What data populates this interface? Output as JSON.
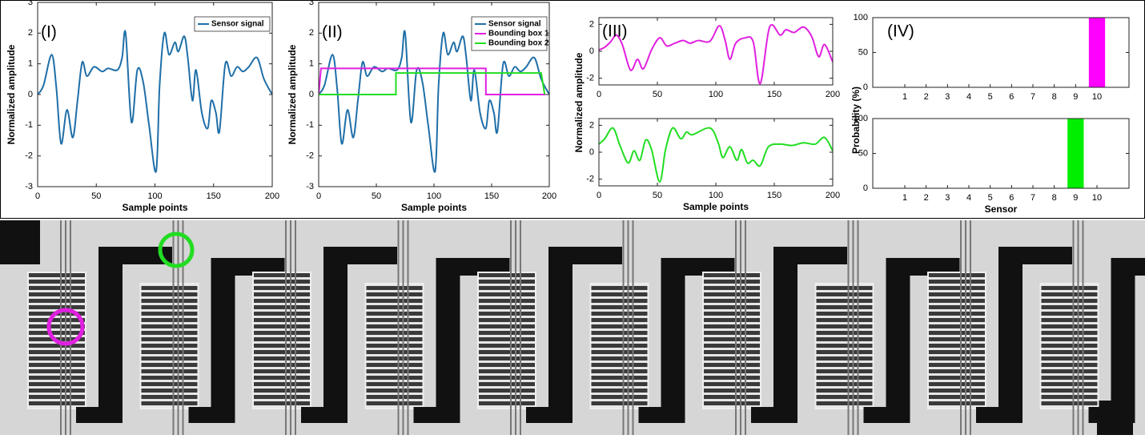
{
  "chart_data": [
    {
      "type": "line",
      "label": "(I)",
      "xlabel": "Sample points",
      "ylabel": "Normalized amplitude",
      "xlim": [
        0,
        200
      ],
      "xticks": [
        0,
        50,
        100,
        150,
        200
      ],
      "ylim": [
        -3,
        3
      ],
      "yticks": [
        -3,
        -2,
        -1,
        0,
        1,
        2,
        3
      ],
      "legend": "upper right",
      "series": [
        {
          "name": "Sensor signal",
          "color": "#1f6fa8",
          "smooth": true,
          "x": [
            0,
            5,
            12,
            16,
            20,
            25,
            30,
            34,
            38,
            42,
            48,
            55,
            60,
            68,
            72,
            75,
            80,
            85,
            90,
            95,
            101,
            104,
            108,
            112,
            117,
            120,
            125,
            128,
            132,
            135,
            140,
            145,
            148,
            152,
            155,
            160,
            165,
            170,
            175,
            180,
            187,
            193,
            200
          ],
          "values": [
            0,
            0.3,
            1.3,
            0.2,
            -1.6,
            -0.5,
            -1.4,
            -0.2,
            1.05,
            0.6,
            0.9,
            0.75,
            0.85,
            0.8,
            1.2,
            2.0,
            -0.9,
            0.8,
            0.4,
            -1.0,
            -2.5,
            0.3,
            2.0,
            1.3,
            1.7,
            1.4,
            1.9,
            1.2,
            -0.2,
            0.8,
            -0.6,
            -1.1,
            -0.2,
            -0.6,
            -1.2,
            1.0,
            0.6,
            0.9,
            0.75,
            0.9,
            1.2,
            0.5,
            0
          ]
        }
      ]
    },
    {
      "type": "line",
      "label": "(II)",
      "xlabel": "Sample points",
      "ylabel": "Normalized amplitude",
      "xlim": [
        0,
        200
      ],
      "xticks": [
        0,
        50,
        100,
        150,
        200
      ],
      "ylim": [
        -3,
        3
      ],
      "yticks": [
        -3,
        -2,
        -1,
        0,
        1,
        2,
        3
      ],
      "legend": "upper right",
      "series": [
        {
          "name": "Sensor signal",
          "color": "#1f6fa8",
          "smooth": true,
          "x": [
            0,
            5,
            12,
            16,
            20,
            25,
            30,
            34,
            38,
            42,
            48,
            55,
            60,
            68,
            72,
            75,
            80,
            85,
            90,
            95,
            101,
            104,
            108,
            112,
            117,
            120,
            125,
            128,
            132,
            135,
            140,
            145,
            148,
            152,
            155,
            160,
            165,
            170,
            175,
            180,
            187,
            193,
            200
          ],
          "values": [
            0,
            0.3,
            1.3,
            0.2,
            -1.6,
            -0.5,
            -1.4,
            -0.2,
            1.05,
            0.6,
            0.9,
            0.75,
            0.85,
            0.8,
            1.2,
            2.0,
            -0.9,
            0.8,
            0.4,
            -1.0,
            -2.5,
            0.3,
            2.0,
            1.3,
            1.7,
            1.4,
            1.9,
            1.2,
            -0.2,
            0.8,
            -0.6,
            -1.1,
            -0.2,
            -0.6,
            -1.2,
            1.0,
            0.6,
            0.9,
            0.75,
            0.9,
            1.2,
            0.5,
            0
          ]
        },
        {
          "name": "Bounding box 1",
          "color": "#e020e0",
          "smooth": false,
          "x": [
            0,
            2,
            145,
            145,
            197
          ],
          "values": [
            0,
            0.85,
            0.85,
            0,
            0
          ]
        },
        {
          "name": "Bounding box 2",
          "color": "#22dd22",
          "smooth": false,
          "x": [
            0,
            67,
            67,
            193,
            196
          ],
          "values": [
            0,
            0,
            0.7,
            0.7,
            0
          ]
        }
      ]
    },
    {
      "type": "line",
      "label": "(III)",
      "ylabel": "Normalized amplitude",
      "xlim": [
        0,
        200
      ],
      "xticks": [
        0,
        50,
        100,
        150,
        200
      ],
      "ylim": [
        -2.5,
        2.5
      ],
      "yticks": [
        -2,
        0,
        2
      ],
      "series": [
        {
          "color": "#e020e0",
          "smooth": true,
          "x": [
            0,
            5,
            10,
            15,
            20,
            27,
            33,
            38,
            45,
            52,
            58,
            65,
            72,
            78,
            85,
            95,
            103,
            108,
            112,
            117,
            125,
            132,
            138,
            146,
            155,
            160,
            167,
            175,
            182,
            188,
            193,
            200
          ],
          "values": [
            0.1,
            0.3,
            0.7,
            1.2,
            0.5,
            -1.4,
            -0.6,
            -1.3,
            0.1,
            1.0,
            0.4,
            0.6,
            0.8,
            0.6,
            0.8,
            0.75,
            1.9,
            0.8,
            -0.6,
            0.6,
            1.0,
            0.7,
            -2.4,
            1.8,
            1.2,
            1.6,
            1.4,
            1.8,
            1.1,
            -0.4,
            0.5,
            -0.8
          ]
        }
      ]
    },
    {
      "type": "line",
      "xlabel": "Sample points",
      "xlim": [
        0,
        200
      ],
      "xticks": [
        0,
        50,
        100,
        150,
        200
      ],
      "ylim": [
        -2.5,
        2.5
      ],
      "yticks": [
        -2,
        0,
        2
      ],
      "series": [
        {
          "color": "#22dd22",
          "smooth": true,
          "x": [
            0,
            5,
            12,
            18,
            25,
            30,
            35,
            40,
            45,
            52,
            57,
            63,
            70,
            75,
            80,
            95,
            102,
            106,
            112,
            118,
            122,
            127,
            132,
            138,
            145,
            155,
            165,
            175,
            185,
            193,
            200
          ],
          "values": [
            0.6,
            1.0,
            1.8,
            0.5,
            -0.8,
            0.1,
            -0.6,
            0.9,
            0.2,
            -2.2,
            0.2,
            1.8,
            1.0,
            1.5,
            1.3,
            1.8,
            0.7,
            -0.4,
            0.4,
            -0.6,
            0.2,
            -0.8,
            -0.6,
            -1.0,
            0.4,
            0.6,
            0.5,
            0.7,
            0.6,
            1.1,
            0.1
          ]
        }
      ]
    },
    {
      "type": "bar",
      "label": "(IV)",
      "categories": [
        "1",
        "2",
        "3",
        "4",
        "5",
        "6",
        "7",
        "8",
        "9",
        "10"
      ],
      "values": [
        0,
        0,
        0,
        0,
        0,
        0,
        0,
        0,
        0,
        100
      ],
      "color": "#ff00ff",
      "ylim": [
        0,
        100
      ],
      "yticks": [
        0,
        50,
        100
      ]
    },
    {
      "type": "bar",
      "xlabel": "Sensor",
      "ylabel": "Probability (%)",
      "categories": [
        "1",
        "2",
        "3",
        "4",
        "5",
        "6",
        "7",
        "8",
        "9",
        "10"
      ],
      "values": [
        0,
        0,
        0,
        0,
        0,
        0,
        0,
        0,
        100,
        0
      ],
      "color": "#00ee00",
      "ylim": [
        0,
        100
      ],
      "yticks": [
        0,
        50,
        100
      ]
    }
  ]
}
